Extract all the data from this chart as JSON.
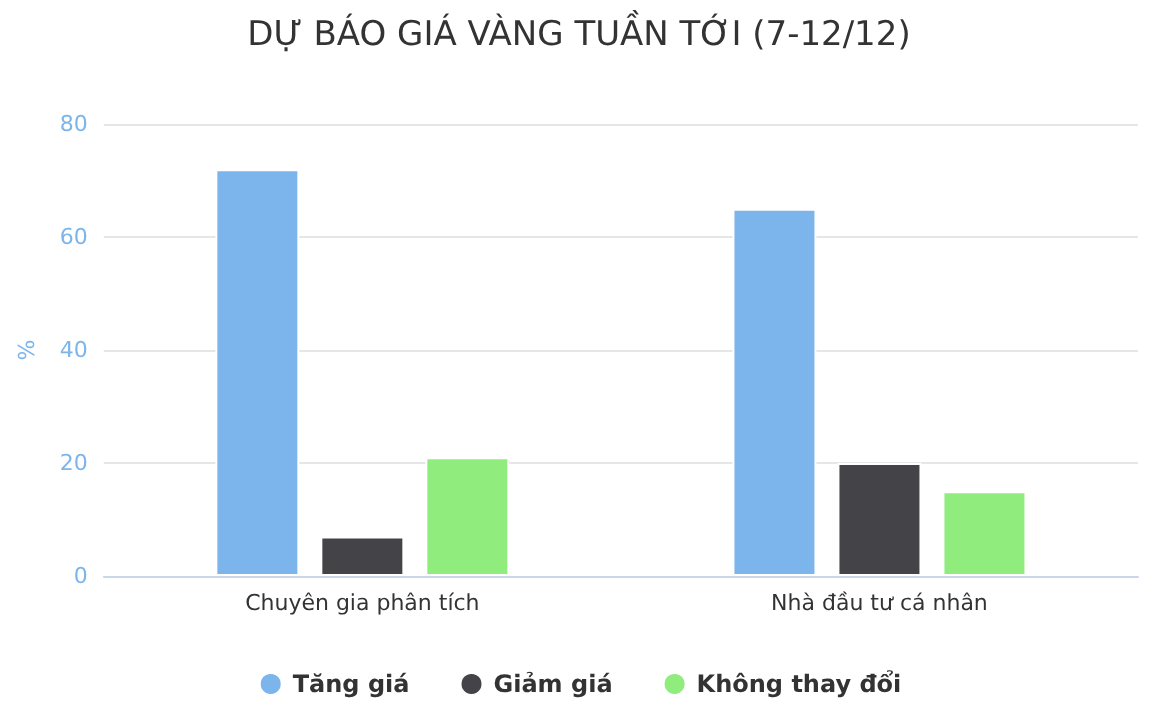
{
  "chart_data": {
    "type": "bar",
    "title": "DỰ BÁO GIÁ VÀNG TUẦN TỚI (7-12/12)",
    "ylabel": "%",
    "categories": [
      "Chuyên gia phân tích",
      "Nhà đầu tư cá nhân"
    ],
    "series": [
      {
        "name": "Tăng giá",
        "color": "#7cb5ec",
        "values": [
          72,
          65
        ]
      },
      {
        "name": "Giảm giá",
        "color": "#434348",
        "values": [
          7,
          20
        ]
      },
      {
        "name": "Không thay đổi",
        "color": "#90ed7d",
        "values": [
          21,
          15
        ]
      }
    ],
    "ylim": [
      0,
      80
    ],
    "yticks": [
      0,
      20,
      40,
      60,
      80
    ],
    "grid": "y",
    "legend": "bottom"
  }
}
